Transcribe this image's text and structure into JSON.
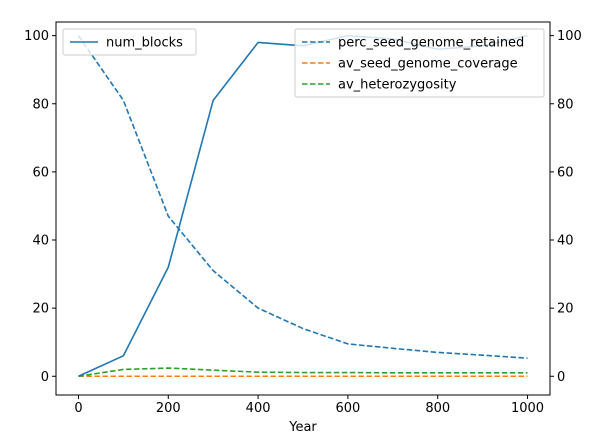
{
  "chart_data": {
    "type": "line",
    "xlabel": "Year",
    "x": [
      0,
      100,
      200,
      300,
      400,
      500,
      600,
      700,
      800,
      900,
      1000
    ],
    "xlim": [
      -50,
      1050
    ],
    "xticks": [
      0,
      200,
      400,
      600,
      800,
      1000
    ],
    "left_axis": {
      "ylim": [
        -5.5,
        104
      ],
      "yticks": [
        0,
        20,
        40,
        60,
        80,
        100
      ],
      "legend": "top-left",
      "series": [
        {
          "name": "num_blocks",
          "color": "#1f77b4",
          "style": "solid",
          "values": [
            0,
            6,
            32,
            81,
            98,
            97,
            100,
            99,
            96,
            97,
            100
          ]
        }
      ]
    },
    "right_axis": {
      "ylim": [
        -5.5,
        104
      ],
      "yticks": [
        0,
        20,
        40,
        60,
        80,
        100
      ],
      "legend": "top-right",
      "series": [
        {
          "name": "perc_seed_genome_retained",
          "color": "#1f77b4",
          "style": "dashed",
          "values": [
            100,
            81,
            47,
            31,
            20,
            14,
            9.5,
            8.2,
            7,
            6.2,
            5.3
          ]
        },
        {
          "name": "av_seed_genome_coverage",
          "color": "#ff7f0e",
          "style": "dashed",
          "values": [
            0,
            0,
            0,
            0,
            0,
            0,
            0,
            0,
            0,
            0,
            0
          ]
        },
        {
          "name": "av_heterozygosity",
          "color": "#2ca02c",
          "style": "dashed",
          "values": [
            0,
            2,
            2.4,
            1.8,
            1.2,
            1.1,
            1.1,
            1.0,
            1.0,
            1.0,
            1.0
          ]
        }
      ]
    }
  }
}
